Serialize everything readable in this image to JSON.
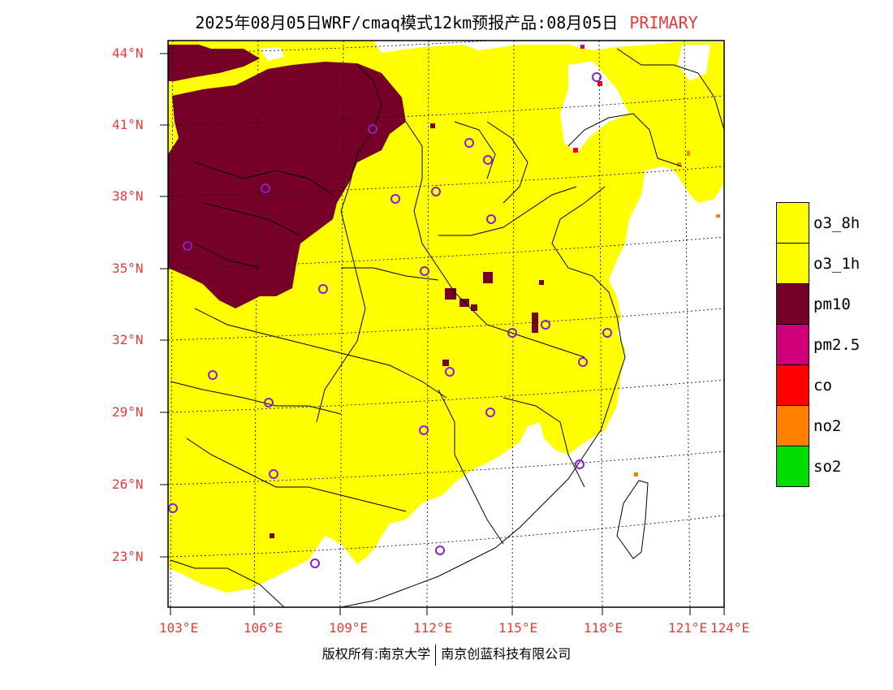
{
  "title": {
    "text": "2025年08月05日WRF/cmaq模式12km预报产品:08月05日",
    "tag": "PRIMARY"
  },
  "colors": {
    "o3_yellow": "#ffff00",
    "pm10_maroon": "#770028",
    "pm25_magenta": "#d0007a",
    "co_red": "#ff0000",
    "no2_orange": "#ff7f00",
    "so2_green": "#00dd00",
    "axis_label_red": "#e23b3b",
    "station_purple": "#8a1fd0"
  },
  "lat_labels": [
    "44°N",
    "41°N",
    "38°N",
    "35°N",
    "32°N",
    "29°N",
    "26°N",
    "23°N"
  ],
  "lon_labels": [
    "103°E",
    "106°E",
    "109°E",
    "112°E",
    "115°E",
    "118°E",
    "121°E",
    "124°E"
  ],
  "legend": [
    {
      "label": "o3_8h",
      "color": "#ffff00"
    },
    {
      "label": "o3_1h",
      "color": "#ffff00"
    },
    {
      "label": "pm10",
      "color": "#770028"
    },
    {
      "label": "pm2.5",
      "color": "#d0007a"
    },
    {
      "label": "co",
      "color": "#ff0000"
    },
    {
      "label": "no2",
      "color": "#ff7f00"
    },
    {
      "label": "so2",
      "color": "#00dd00"
    }
  ],
  "footer": {
    "left": "版权所有:南京大学",
    "right": "南京创蓝科技有限公司"
  }
}
